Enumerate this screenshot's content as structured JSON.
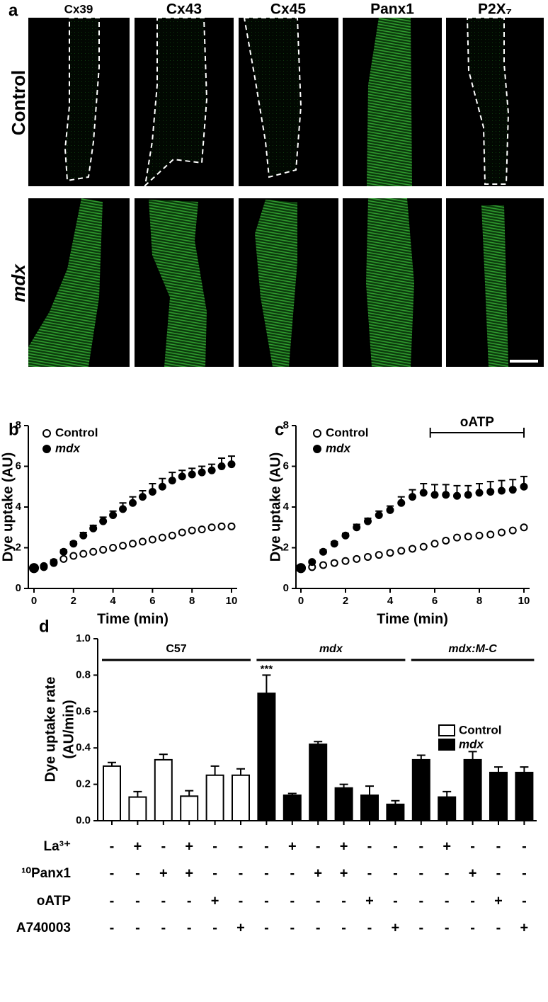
{
  "panel_a": {
    "label": "a",
    "columns": [
      "Cx39",
      "Cx43",
      "Cx45",
      "Panx1",
      "P2X₇"
    ],
    "rows": [
      "Control",
      "mdx"
    ]
  },
  "chart_data": [
    {
      "type": "scatter",
      "panel_label": "b",
      "x_label": "Time (min)",
      "y_label": "Dye uptake (AU)",
      "x": [
        0,
        0.5,
        1,
        1.5,
        2,
        2.5,
        3,
        3.5,
        4,
        4.5,
        5,
        5.5,
        6,
        6.5,
        7,
        7.5,
        8,
        8.5,
        9,
        9.5,
        10
      ],
      "series": [
        {
          "name": "Control",
          "color": "#000000",
          "filled": false,
          "values": [
            1.0,
            1.1,
            1.25,
            1.45,
            1.6,
            1.7,
            1.8,
            1.9,
            2.0,
            2.1,
            2.2,
            2.3,
            2.4,
            2.5,
            2.6,
            2.75,
            2.85,
            2.9,
            3.0,
            3.05,
            3.05
          ]
        },
        {
          "name": "mdx",
          "color": "#000000",
          "filled": true,
          "values": [
            1.0,
            1.05,
            1.3,
            1.8,
            2.2,
            2.6,
            2.95,
            3.3,
            3.6,
            3.9,
            4.2,
            4.5,
            4.75,
            5.0,
            5.3,
            5.5,
            5.6,
            5.7,
            5.8,
            6.0,
            6.1
          ],
          "errors": [
            0.05,
            0.05,
            0.1,
            0.1,
            0.1,
            0.15,
            0.15,
            0.2,
            0.2,
            0.3,
            0.3,
            0.3,
            0.4,
            0.4,
            0.4,
            0.3,
            0.3,
            0.3,
            0.3,
            0.4,
            0.4
          ]
        }
      ],
      "xlim": [
        0,
        10
      ],
      "xticks": [
        0,
        2,
        4,
        6,
        8,
        10
      ],
      "ylim": [
        0,
        8
      ],
      "yticks": [
        0,
        2,
        4,
        6,
        8
      ]
    },
    {
      "type": "scatter",
      "panel_label": "c",
      "x_label": "Time (min)",
      "y_label": "Dye uptake (AU)",
      "annotation": {
        "text": "oATP",
        "x": [
          5.8,
          10
        ]
      },
      "x": [
        0,
        0.5,
        1,
        1.5,
        2,
        2.5,
        3,
        3.5,
        4,
        4.5,
        5,
        5.5,
        6,
        6.5,
        7,
        7.5,
        8,
        8.5,
        9,
        9.5,
        10
      ],
      "series": [
        {
          "name": "Control",
          "color": "#000000",
          "filled": false,
          "values": [
            1.0,
            1.05,
            1.15,
            1.25,
            1.35,
            1.45,
            1.55,
            1.65,
            1.75,
            1.85,
            1.95,
            2.05,
            2.2,
            2.35,
            2.5,
            2.55,
            2.6,
            2.65,
            2.75,
            2.85,
            3.0
          ]
        },
        {
          "name": "mdx",
          "color": "#000000",
          "filled": true,
          "values": [
            1.0,
            1.3,
            1.8,
            2.2,
            2.6,
            3.0,
            3.3,
            3.6,
            3.85,
            4.2,
            4.5,
            4.7,
            4.6,
            4.6,
            4.55,
            4.6,
            4.7,
            4.75,
            4.8,
            4.85,
            5.0
          ],
          "errors": [
            0.05,
            0.05,
            0.1,
            0.1,
            0.1,
            0.15,
            0.15,
            0.2,
            0.2,
            0.3,
            0.35,
            0.45,
            0.5,
            0.5,
            0.5,
            0.45,
            0.45,
            0.5,
            0.5,
            0.5,
            0.5
          ]
        }
      ],
      "xlim": [
        0,
        10
      ],
      "xticks": [
        0,
        2,
        4,
        6,
        8,
        10
      ],
      "ylim": [
        0,
        8
      ],
      "yticks": [
        0,
        2,
        4,
        6,
        8
      ]
    },
    {
      "type": "bar",
      "panel_label": "d",
      "y_label": [
        "Dye uptake rate",
        "(AU/min)"
      ],
      "groups": [
        {
          "label": "C57",
          "count": 6
        },
        {
          "label": "mdx",
          "count": 6
        },
        {
          "label": "mdx:M-C",
          "count": 5
        }
      ],
      "series": [
        {
          "name": "Control",
          "color": "#ffffff",
          "values": [
            0.3,
            0.13,
            0.335,
            0.135,
            0.25,
            0.25,
            null,
            null,
            null,
            null,
            null,
            null,
            null,
            null,
            null,
            null,
            null
          ],
          "errors": [
            0.02,
            0.03,
            0.03,
            0.03,
            0.05,
            0.035,
            null,
            null,
            null,
            null,
            null,
            null,
            null,
            null,
            null,
            null,
            null
          ]
        },
        {
          "name": "mdx",
          "color": "#000000",
          "values": [
            null,
            null,
            null,
            null,
            null,
            null,
            0.7,
            0.14,
            0.42,
            0.18,
            0.14,
            0.09,
            0.335,
            0.13,
            0.335,
            0.265,
            0.265
          ],
          "errors": [
            null,
            null,
            null,
            null,
            null,
            null,
            0.1,
            0.01,
            0.015,
            0.02,
            0.05,
            0.02,
            0.025,
            0.03,
            0.045,
            0.03,
            0.03
          ]
        }
      ],
      "annotations": [
        {
          "index": 6,
          "text": "***"
        }
      ],
      "treatments": [
        {
          "name": "La³⁺",
          "signs": [
            "-",
            "+",
            "-",
            "+",
            "-",
            "-",
            "-",
            "+",
            "-",
            "+",
            "-",
            "-",
            "-",
            "+",
            "-",
            "-",
            "-"
          ]
        },
        {
          "name": "¹⁰Panx1",
          "signs": [
            "-",
            "-",
            "+",
            "+",
            "-",
            "-",
            "-",
            "-",
            "+",
            "+",
            "-",
            "-",
            "-",
            "-",
            "+",
            "-",
            "-"
          ]
        },
        {
          "name": "oATP",
          "signs": [
            "-",
            "-",
            "-",
            "-",
            "+",
            "-",
            "-",
            "-",
            "-",
            "-",
            "+",
            "-",
            "-",
            "-",
            "-",
            "+",
            "-"
          ]
        },
        {
          "name": "A740003",
          "signs": [
            "-",
            "-",
            "-",
            "-",
            "-",
            "+",
            "-",
            "-",
            "-",
            "-",
            "-",
            "+",
            "-",
            "-",
            "-",
            "-",
            "+"
          ]
        }
      ],
      "ylim": [
        0,
        1.0
      ],
      "yticks": [
        {
          "value": 0,
          "label": "0.0"
        },
        0.2,
        0.4,
        0.6,
        0.8,
        {
          "value": 1.0,
          "label": "1.0"
        }
      ]
    }
  ]
}
